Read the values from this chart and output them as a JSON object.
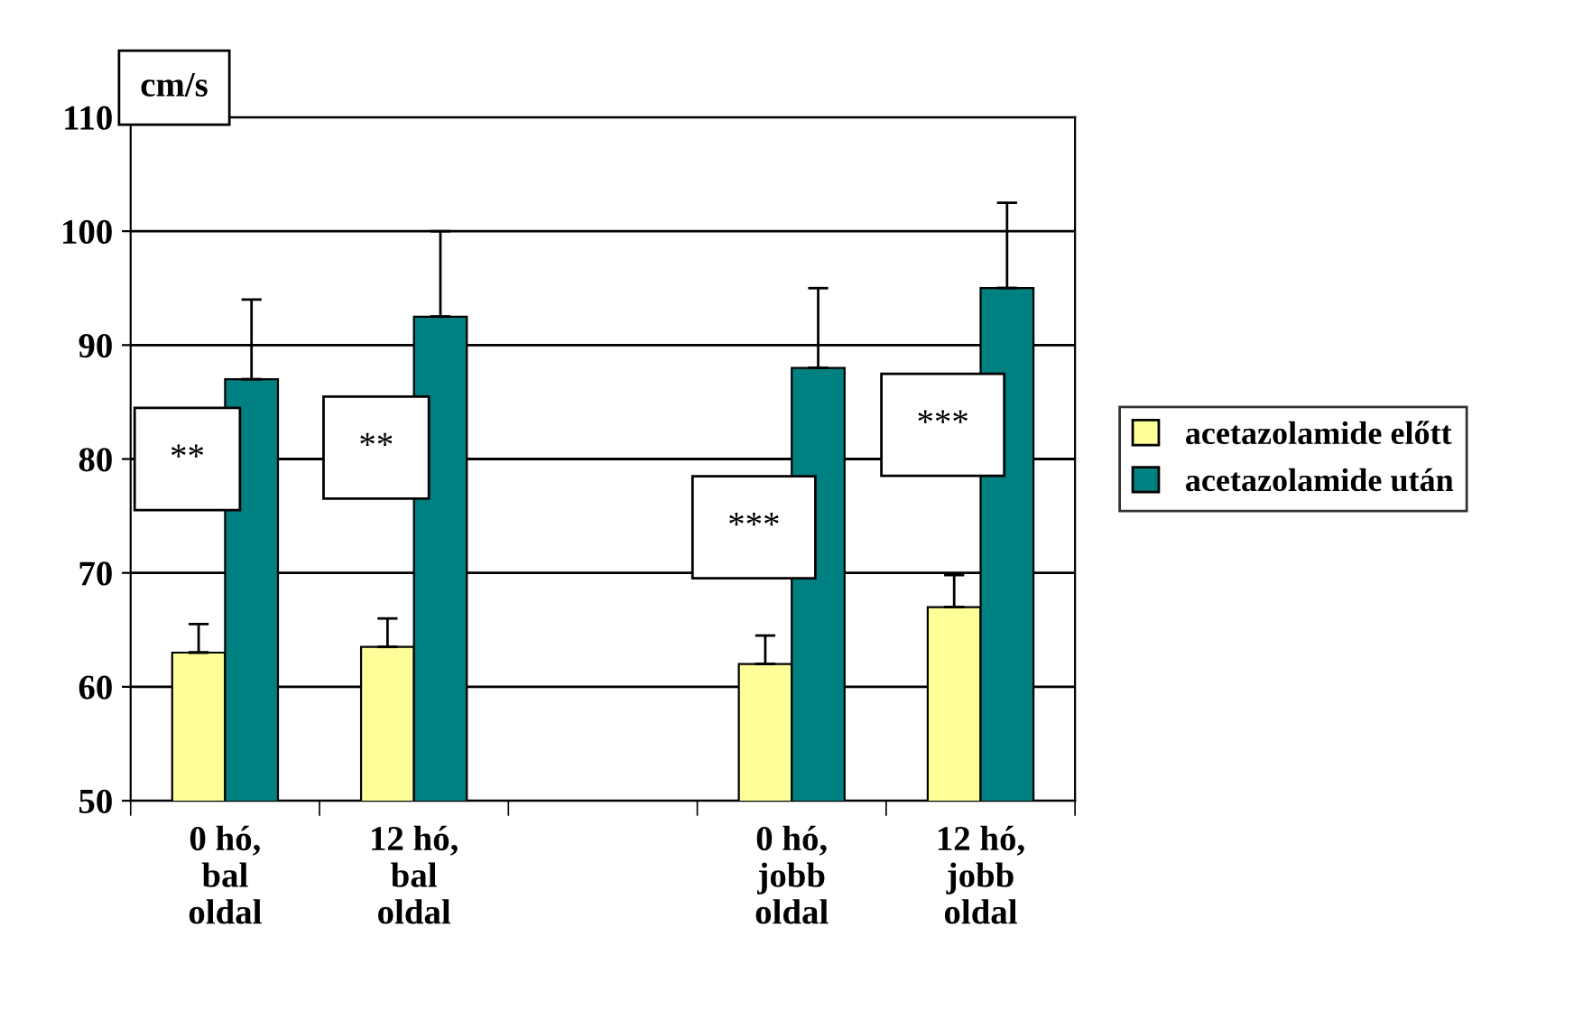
{
  "chart_data": {
    "type": "bar",
    "ylabel": "cm/s",
    "categories": [
      "0 hó,\nbal\noldal",
      "12 hó,\nbal\noldal",
      null,
      "0 hó,\njobb\noldal",
      "12 hó,\njobb\noldal"
    ],
    "series": [
      {
        "name": "acetazolamide előtt",
        "color": "#ffff99",
        "values": [
          63,
          63.5,
          null,
          62,
          67
        ],
        "errors": [
          2.5,
          2.5,
          null,
          2.5,
          2.8
        ]
      },
      {
        "name": "acetazolamide után",
        "color": "#008080",
        "values": [
          87,
          92.5,
          null,
          88,
          95
        ],
        "errors": [
          7,
          7.5,
          null,
          7,
          7.5
        ]
      }
    ],
    "ylim": [
      50,
      110
    ],
    "yticks": [
      50,
      60,
      70,
      80,
      90,
      100,
      110
    ],
    "grid": "y",
    "legend": "right",
    "annotations": [
      {
        "text": "**",
        "x": "0 hó,\nbal\noldal",
        "y": 80
      },
      {
        "text": "**",
        "x": "12 hó,\nbal\noldal",
        "y": 81
      },
      {
        "text": "***",
        "x": "0 hó,\njobb\noldal",
        "y": 74
      },
      {
        "text": "***",
        "x": "12 hó,\njobb\noldal",
        "y": 83
      }
    ]
  }
}
